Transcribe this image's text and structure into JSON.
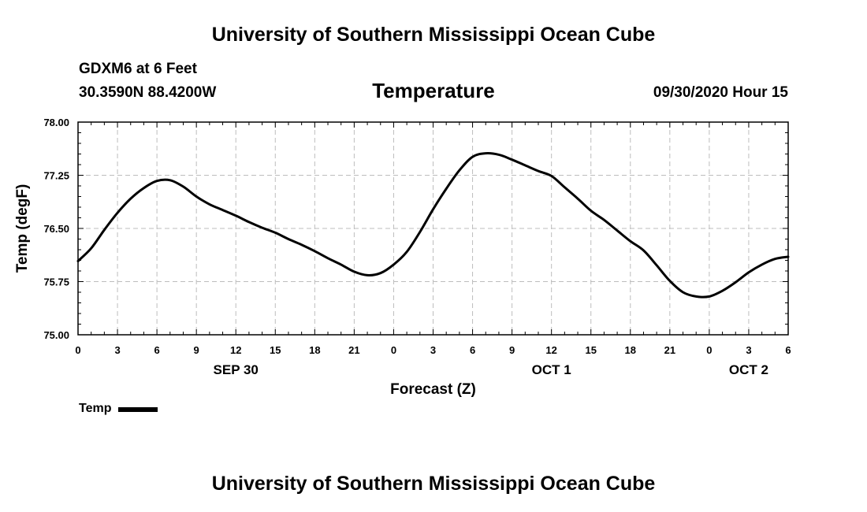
{
  "header": {
    "title": "University of Southern Mississippi Ocean Cube",
    "station": "GDXM6 at 6 Feet",
    "coords": "30.3590N 88.4200W",
    "variable": "Temperature",
    "datetime": "09/30/2020 Hour 15"
  },
  "footer": {
    "title": "University of Southern Mississippi Ocean Cube"
  },
  "legend": {
    "label": "Temp",
    "color": "#000000"
  },
  "chart_data": {
    "type": "line",
    "title": "Temperature",
    "xlabel": "Forecast (Z)",
    "ylabel": "Temp (degF)",
    "ylim": [
      75.0,
      78.0
    ],
    "xlim": [
      0,
      54
    ],
    "yticks": [
      75.0,
      75.75,
      76.5,
      77.25,
      78.0
    ],
    "ytick_labels": [
      "75.00",
      "75.75",
      "76.50",
      "77.25",
      "78.00"
    ],
    "xticks": [
      0,
      3,
      6,
      9,
      12,
      15,
      18,
      21,
      24,
      27,
      30,
      33,
      36,
      39,
      42,
      45,
      48,
      51,
      54
    ],
    "xtick_labels": [
      "0",
      "3",
      "6",
      "9",
      "12",
      "15",
      "18",
      "21",
      "0",
      "3",
      "6",
      "9",
      "12",
      "15",
      "18",
      "21",
      "0",
      "3",
      "6"
    ],
    "date_labels": [
      {
        "label": "SEP 30",
        "at": 12
      },
      {
        "label": "OCT 1",
        "at": 36
      },
      {
        "label": "OCT 2",
        "at": 51
      }
    ],
    "grid": true,
    "series": [
      {
        "name": "Temp",
        "color": "#000000",
        "x": [
          0,
          1,
          2,
          3,
          4,
          5,
          6,
          7,
          8,
          9,
          10,
          11,
          12,
          13,
          14,
          15,
          16,
          17,
          18,
          19,
          20,
          21,
          22,
          23,
          24,
          25,
          26,
          27,
          28,
          29,
          30,
          31,
          32,
          33,
          34,
          35,
          36,
          37,
          38,
          39,
          40,
          41,
          42,
          43,
          44,
          45,
          46,
          47,
          48,
          49,
          50,
          51,
          52,
          53,
          54
        ],
        "values": [
          76.04,
          76.22,
          76.48,
          76.72,
          76.92,
          77.07,
          77.17,
          77.18,
          77.09,
          76.95,
          76.84,
          76.76,
          76.68,
          76.59,
          76.51,
          76.44,
          76.35,
          76.27,
          76.18,
          76.08,
          75.99,
          75.89,
          75.84,
          75.87,
          75.99,
          76.17,
          76.45,
          76.77,
          77.06,
          77.32,
          77.51,
          77.56,
          77.54,
          77.47,
          77.39,
          77.31,
          77.24,
          77.08,
          76.92,
          76.75,
          76.62,
          76.47,
          76.32,
          76.19,
          75.98,
          75.76,
          75.6,
          75.54,
          75.54,
          75.62,
          75.74,
          75.88,
          75.99,
          76.07,
          76.1
        ]
      }
    ]
  }
}
